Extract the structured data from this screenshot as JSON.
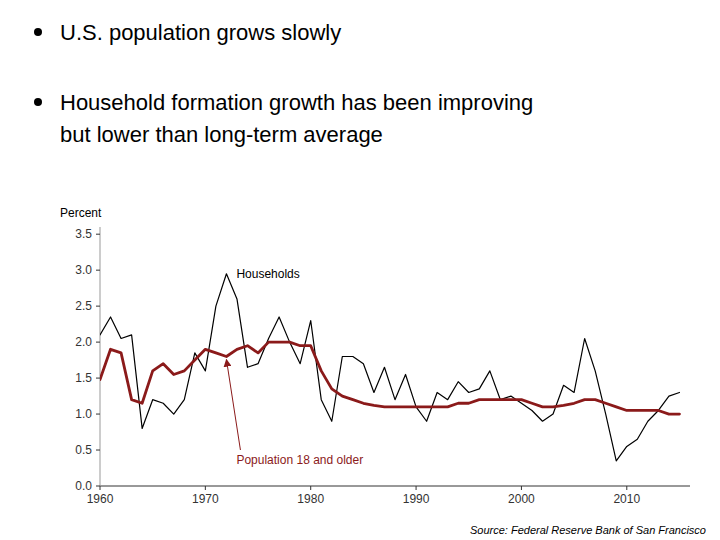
{
  "chart_data": {
    "type": "line",
    "bullets": [
      [
        "U.S. population grows slowly"
      ],
      [
        "Household formation growth has been improving",
        "but lower than long-term average"
      ]
    ],
    "y_label": "Percent",
    "source": "Source: Federal Reserve Bank of San Francisco",
    "xlim": [
      1960,
      2016
    ],
    "ylim": [
      0.0,
      3.6
    ],
    "xticks": [
      1960,
      1970,
      1980,
      1990,
      2000,
      2010
    ],
    "yticks": [
      {
        "value": 0.0,
        "label": "0.0"
      },
      0.5,
      {
        "value": 1.0,
        "label": "1.0"
      },
      1.5,
      {
        "value": 2.0,
        "label": "2.0"
      },
      2.5,
      {
        "value": 3.0,
        "label": "3.0"
      },
      3.5
    ],
    "x": [
      1960,
      1961,
      1962,
      1963,
      1964,
      1965,
      1966,
      1967,
      1968,
      1969,
      1970,
      1971,
      1972,
      1973,
      1974,
      1975,
      1976,
      1977,
      1978,
      1979,
      1980,
      1981,
      1982,
      1983,
      1984,
      1985,
      1986,
      1987,
      1988,
      1989,
      1990,
      1991,
      1992,
      1993,
      1994,
      1995,
      1996,
      1997,
      1998,
      1999,
      2000,
      2001,
      2002,
      2003,
      2004,
      2005,
      2006,
      2007,
      2008,
      2009,
      2010,
      2011,
      2012,
      2013,
      2014,
      2015
    ],
    "series": [
      {
        "name": "Households",
        "color": "#000000",
        "values": [
          2.1,
          2.35,
          2.05,
          2.1,
          0.8,
          1.2,
          1.15,
          1.0,
          1.2,
          1.85,
          1.6,
          2.5,
          2.95,
          2.6,
          1.65,
          1.7,
          2.05,
          2.35,
          2.0,
          1.7,
          2.3,
          1.2,
          0.9,
          1.8,
          1.8,
          1.7,
          1.3,
          1.65,
          1.2,
          1.55,
          1.1,
          0.9,
          1.3,
          1.2,
          1.45,
          1.3,
          1.35,
          1.6,
          1.2,
          1.25,
          1.15,
          1.05,
          0.9,
          1.0,
          1.4,
          1.3,
          2.05,
          1.6,
          1.0,
          0.35,
          0.55,
          0.65,
          0.9,
          1.05,
          1.25,
          1.3
        ]
      },
      {
        "name": "Population 18 and older",
        "color": "#8B1A1A",
        "values": [
          1.48,
          1.9,
          1.85,
          1.2,
          1.15,
          1.6,
          1.7,
          1.55,
          1.6,
          1.75,
          1.9,
          1.85,
          1.8,
          1.9,
          1.95,
          1.85,
          2.0,
          2.0,
          2.0,
          1.95,
          1.95,
          1.6,
          1.35,
          1.25,
          1.2,
          1.15,
          1.12,
          1.1,
          1.1,
          1.1,
          1.1,
          1.1,
          1.1,
          1.1,
          1.15,
          1.15,
          1.2,
          1.2,
          1.2,
          1.2,
          1.2,
          1.15,
          1.1,
          1.1,
          1.12,
          1.15,
          1.2,
          1.2,
          1.15,
          1.1,
          1.05,
          1.05,
          1.05,
          1.05,
          1.0,
          1.0
        ]
      }
    ]
  }
}
